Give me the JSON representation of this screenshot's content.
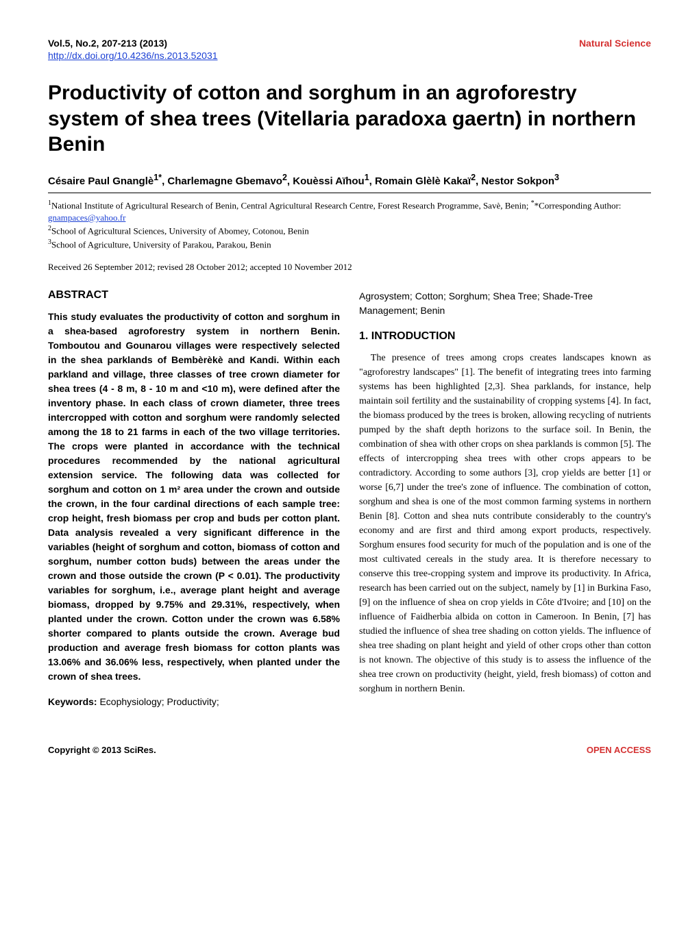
{
  "header": {
    "left": "Vol.5, No.2, 207-213 (2013)",
    "right": "Natural Science",
    "doi": "http://dx.doi.org/10.4236/ns.2013.52031"
  },
  "title": "Productivity of cotton and sorghum in an agroforestry system of shea trees (Vitellaria paradoxa gaertn) in northern Benin",
  "authors_html": "Césaire Paul Gnanglè<sup>1*</sup>, Charlemagne Gbemavo<sup>2</sup>, Kouèssi Aïhou<sup>1</sup>, Romain Glèlè Kakaï<sup>2</sup>, Nestor Sokpon<sup>3</sup>",
  "affiliations": [
    {
      "sup": "1",
      "text": "National Institute of Agricultural Research of Benin, Central Agricultural Research Centre, Forest Research Programme, Savè, Benin; ",
      "tail_label": "*Corresponding Author: ",
      "email": "gnampaces@yahoo.fr"
    },
    {
      "sup": "2",
      "text": "School of Agricultural Sciences, University of Abomey, Cotonou, Benin"
    },
    {
      "sup": "3",
      "text": "School of Agriculture, University of Parakou, Parakou, Benin"
    }
  ],
  "received": "Received 26 September 2012; revised 28 October 2012; accepted 10 November 2012",
  "abstract": {
    "heading": "ABSTRACT",
    "text": "This study evaluates the productivity of cotton and sorghum in a shea-based agroforestry system in northern Benin. Tomboutou and Gounarou villages were respectively selected in the shea parklands of Bembèrèkè and Kandi. Within each parkland and village, three classes of tree crown diameter for shea trees (4 - 8 m, 8 - 10 m and <10 m), were defined after the inventory phase. In each class of crown diameter, three trees intercropped with cotton and sorghum were randomly selected among the 18 to 21 farms in each of the two village territories. The crops were planted in accordance with the technical procedures recommended by the national agricultural extension service. The following data was collected for sorghum and cotton on 1 m² area under the crown and outside the crown, in the four cardinal directions of each sample tree: crop height, fresh biomass per crop and buds per cotton plant. Data analysis revealed a very significant difference in the variables (height of sorghum and cotton, biomass of cotton and sorghum, number cotton buds) between the areas under the crown and those outside the crown (P < 0.01). The productivity variables for sorghum, i.e., average plant height and average biomass, dropped by 9.75% and 29.31%, respectively, when planted under the crown. Cotton under the crown was 6.58% shorter compared to plants outside the crown. Average bud production and average fresh biomass for cotton plants was 13.06% and 36.06% less, respectively, when planted under the crown of shea trees."
  },
  "keywords": {
    "label": "Keywords:",
    "text_col1": "Ecophysiology; Productivity;",
    "text_col2": "Agrosystem; Cotton; Sorghum; Shea Tree; Shade-Tree Management; Benin"
  },
  "intro": {
    "heading": "1. INTRODUCTION",
    "text": "The presence of trees among crops creates landscapes known as \"agroforestry landscapes\" [1]. The benefit of integrating trees into farming systems has been highlighted [2,3]. Shea parklands, for instance, help maintain soil fertility and the sustainability of cropping systems [4]. In fact, the biomass produced by the trees is broken, allowing recycling of nutrients pumped by the shaft depth horizons to the surface soil. In Benin, the combination of shea with other crops on shea parklands is common [5]. The effects of intercropping shea trees with other crops appears to be contradictory. According to some authors [3], crop yields are better [1] or worse [6,7] under the tree's zone of influence. The combination of cotton, sorghum and shea is one of the most common farming systems in northern Benin [8]. Cotton and shea nuts contribute considerably to the country's economy and are first and third among export products, respectively. Sorghum ensures food security for much of the population and is one of the most cultivated cereals in the study area. It is therefore necessary to conserve this tree-cropping system and improve its productivity. In Africa, research has been carried out on the subject, namely by [1] in Burkina Faso, [9] on the influence of shea on crop yields in Côte d'Ivoire; and [10] on the influence of Faidherbia albida on cotton in Cameroon. In Benin, [7] has studied the influence of shea tree shading on cotton yields. The influence of shea tree shading on plant height and yield of other crops other than cotton is not known. The objective of this study is to assess the influence of the shea tree crown on productivity (height, yield, fresh biomass) of cotton and sorghum in northern Benin."
  },
  "footer": {
    "left": "Copyright © 2013 SciRes.",
    "right": "OPEN ACCESS"
  },
  "colors": {
    "accent_red": "#d43030",
    "link_blue": "#1a3fd4",
    "text": "#000000",
    "background": "#ffffff"
  }
}
